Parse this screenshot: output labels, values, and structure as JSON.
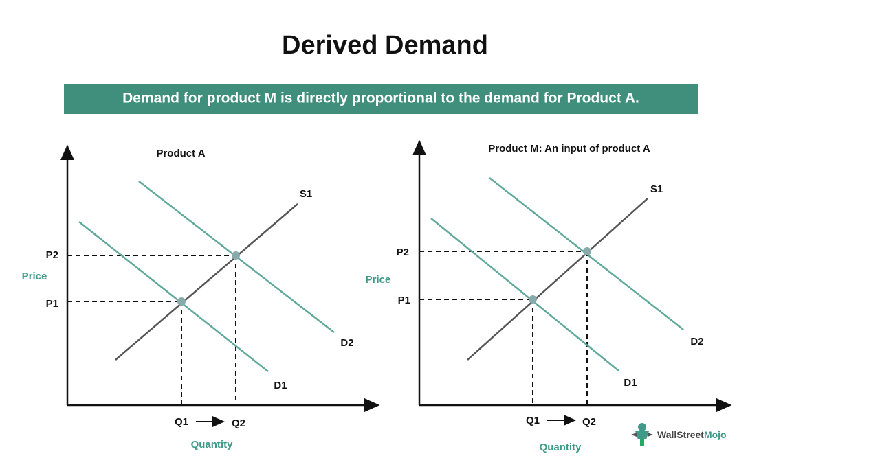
{
  "title": "Derived Demand",
  "banner": "Demand for product M is directly proportional to the demand for Product A.",
  "panels": [
    {
      "title": "Product A",
      "y_axis_label": "Price",
      "x_axis_label": "Quantity",
      "price_labels": [
        "P2",
        "P1"
      ],
      "quantity_labels": [
        "Q1",
        "Q2"
      ],
      "curves": [
        "S1",
        "D2",
        "D1"
      ]
    },
    {
      "title": "Product M: An input of product A",
      "y_axis_label": "Price",
      "x_axis_label": "Quantity",
      "price_labels": [
        "P2",
        "P1"
      ],
      "quantity_labels": [
        "Q1",
        "Q2"
      ],
      "curves": [
        "S1",
        "D2",
        "D1"
      ]
    }
  ],
  "logo": {
    "name": "WallStreet",
    "accent": "Mojo"
  }
}
